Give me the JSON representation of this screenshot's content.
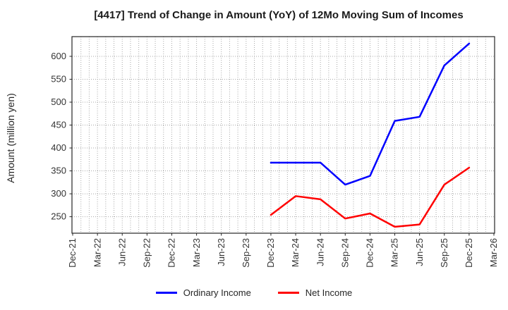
{
  "chart_data": {
    "type": "line",
    "title": "[4417]  Trend of Change in Amount (YoY) of 12Mo Moving Sum of Incomes",
    "xlabel": "",
    "ylabel": "Amount (million yen)",
    "x_tick_labels": [
      "Dec-21",
      "Mar-22",
      "Jun-22",
      "Sep-22",
      "Dec-22",
      "Mar-23",
      "Jun-23",
      "Sep-23",
      "Dec-23",
      "Mar-24",
      "Jun-24",
      "Sep-24",
      "Dec-24",
      "Mar-25",
      "Jun-25",
      "Sep-25",
      "Dec-25",
      "Mar-26"
    ],
    "yticks": [
      250,
      300,
      350,
      400,
      450,
      500,
      550,
      600
    ],
    "ylim": [
      214,
      643
    ],
    "grid": {
      "show": true,
      "style": "dotted",
      "vertical": "monthly-minor",
      "color": "#a8a8a8"
    },
    "axis": {
      "border_color": "#262626",
      "text_color": "#333333"
    },
    "legend_position": "bottom-center",
    "series": [
      {
        "name": "Ordinary Income",
        "color": "#0000ff",
        "x": [
          "Dec-23",
          "Mar-24",
          "Jun-24",
          "Sep-24",
          "Dec-24",
          "Mar-25",
          "Jun-25",
          "Sep-25",
          "Dec-25"
        ],
        "values": [
          368,
          368,
          368,
          320,
          339,
          459,
          468,
          580,
          628
        ]
      },
      {
        "name": "Net Income",
        "color": "#ff0000",
        "x": [
          "Dec-23",
          "Mar-24",
          "Jun-24",
          "Sep-24",
          "Dec-24",
          "Mar-25",
          "Jun-25",
          "Sep-25",
          "Dec-25"
        ],
        "values": [
          254,
          295,
          288,
          246,
          257,
          228,
          233,
          320,
          357
        ]
      }
    ]
  }
}
